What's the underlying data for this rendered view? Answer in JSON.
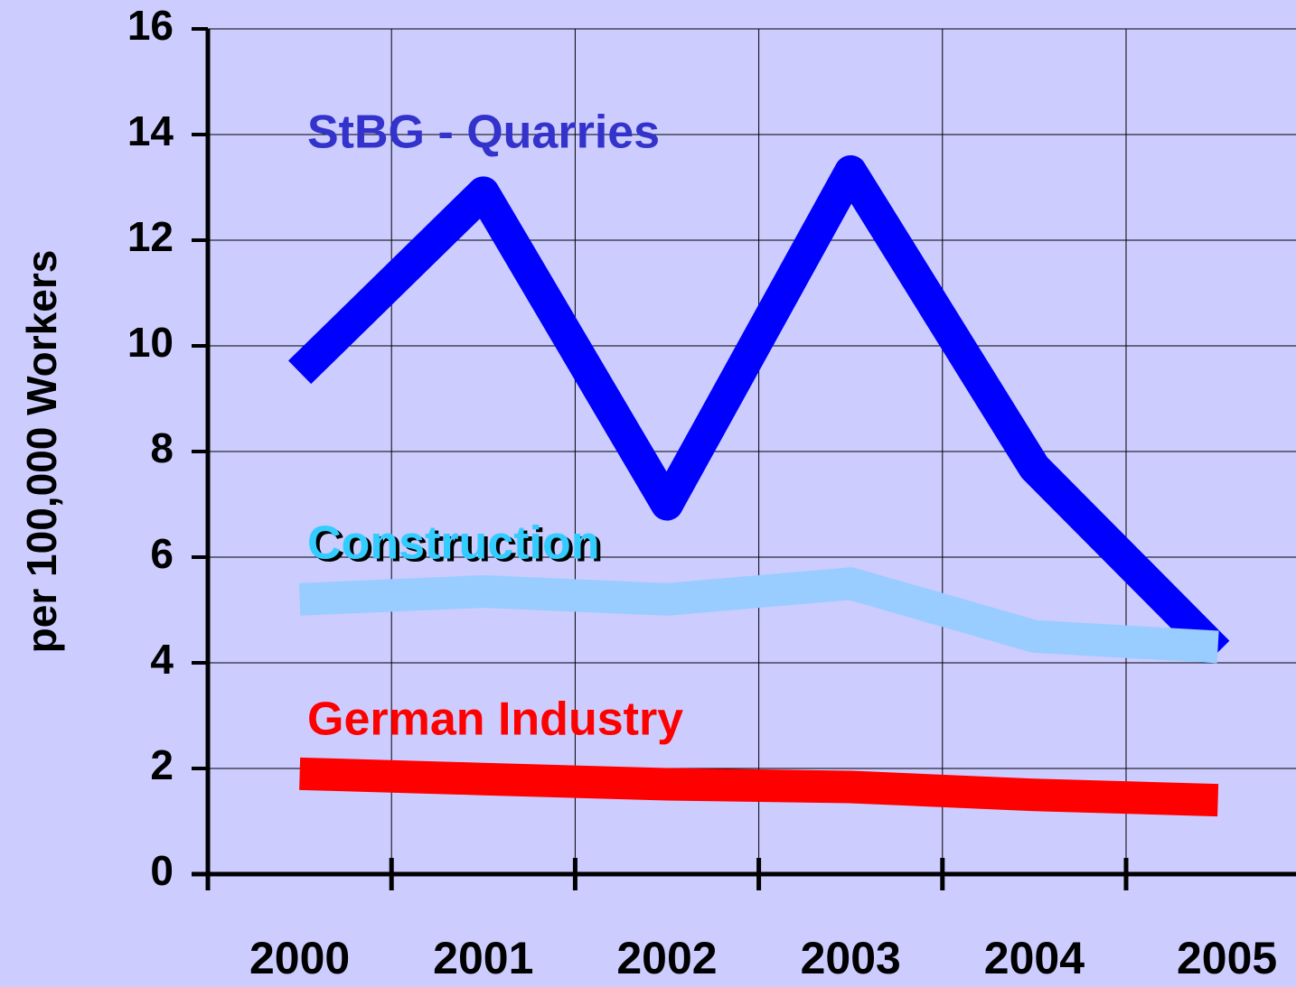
{
  "chart_data": {
    "type": "line",
    "y_label": "per 100,000 Workers",
    "categories": [
      "2000",
      "2001",
      "2002",
      "2003",
      "2004",
      "2005"
    ],
    "series": [
      {
        "name": "StBG - Quarries",
        "color": "#0000ff",
        "label_color": "#3333cc",
        "values": [
          9.5,
          12.9,
          7.0,
          13.3,
          7.7,
          4.2
        ]
      },
      {
        "name": "Construction",
        "color": "#99ccff",
        "label_color": "#33ccff",
        "values": [
          5.2,
          5.35,
          5.2,
          5.5,
          4.5,
          4.3
        ]
      },
      {
        "name": "German Industry",
        "color": "#ff0000",
        "label_color": "#ff0000",
        "values": [
          1.9,
          1.8,
          1.7,
          1.65,
          1.5,
          1.4
        ]
      }
    ],
    "ylim": [
      0,
      16
    ],
    "yticks": [
      0,
      2,
      4,
      6,
      8,
      10,
      12,
      14,
      16
    ],
    "grid": true
  }
}
